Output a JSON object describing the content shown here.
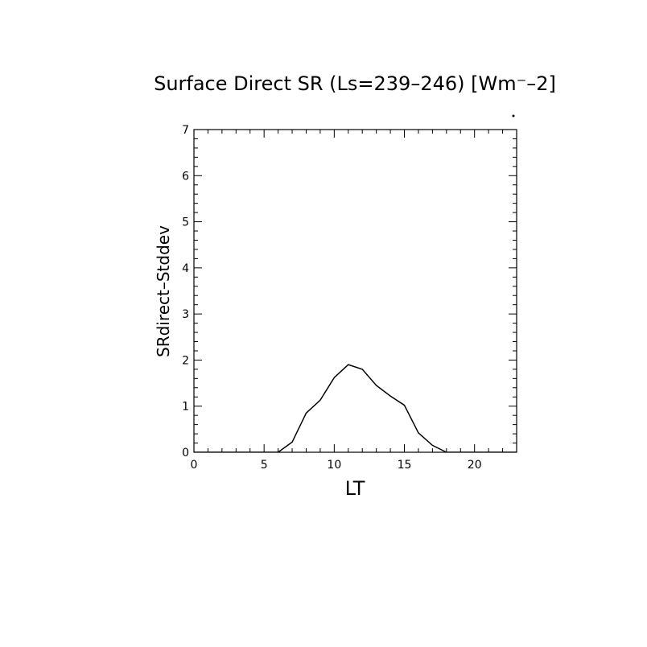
{
  "chart_data": {
    "type": "line",
    "title": "Surface Direct SR (Ls=239–246) [Wm⁻–2]",
    "xlabel": "LT",
    "ylabel": "SRdirect–Stddev",
    "xlim": [
      0,
      23
    ],
    "ylim": [
      0,
      7
    ],
    "xticks": [
      0,
      5,
      10,
      15,
      20
    ],
    "yticks": [
      0,
      1,
      2,
      3,
      4,
      5,
      6,
      7
    ],
    "grid": false,
    "line_color": "#000000",
    "series": [
      {
        "x": [
          0,
          1,
          2,
          3,
          4,
          5,
          6,
          7,
          8,
          9,
          10,
          11,
          12,
          13,
          14,
          15,
          16,
          17,
          18,
          19,
          20,
          21,
          22,
          23
        ],
        "values": [
          0,
          0,
          0,
          0,
          0,
          0,
          0,
          0.22,
          0.85,
          1.13,
          1.62,
          1.9,
          1.8,
          1.45,
          1.22,
          1.02,
          0.42,
          0.15,
          0,
          0,
          0,
          0,
          0,
          0
        ]
      }
    ]
  }
}
